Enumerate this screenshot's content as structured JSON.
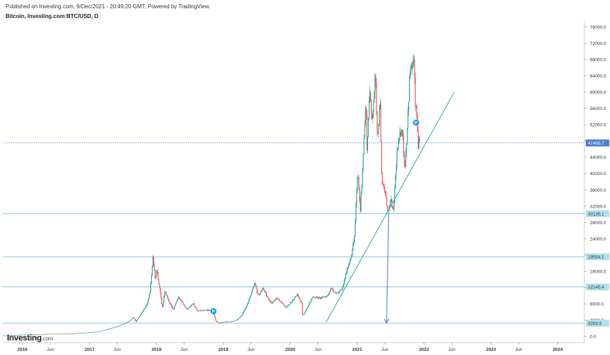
{
  "header": {
    "published": "Published on Investing.com, 9/Dec/2021 - 20:49:20 GMT, Powered by TradingView.",
    "title": "Bitcoin, Investing.com:BTC/USD, D"
  },
  "logo": {
    "brand": "Investing",
    "suffix": ".com"
  },
  "colors": {
    "up": "#26a69a",
    "down": "#ef5350",
    "hline": "#7ec8d8",
    "trendline": "#26a69a",
    "arrow": "#6b7fd7",
    "price_label_bg": "#4d7fd1",
    "level_label_bg": "#b3e0ea",
    "axis_text": "#333333",
    "marker": "#2196f3"
  },
  "chart_data": {
    "type": "candlestick",
    "title": "Bitcoin, Investing.com:BTC/USD, D",
    "ylim": [
      -1500,
      77500
    ],
    "y_ticks": [
      0,
      4000,
      8000,
      12000,
      16000,
      20000,
      24000,
      28000,
      32000,
      36000,
      40000,
      44000,
      48000,
      52000,
      56000,
      60000,
      64000,
      68000,
      72000,
      76000
    ],
    "y_tick_labels": [
      "0.0",
      "4000.0",
      "8000.0",
      "12000.0",
      "16000.0",
      "20000.0",
      "24000.0",
      "28000.0",
      "32000.0",
      "36000.0",
      "40000.0",
      "44000.0",
      "48000.0",
      "52000.0",
      "56000.0",
      "60000.0",
      "64000.0",
      "68000.0",
      "72000.0",
      "76000.0"
    ],
    "x_range": [
      "2015-09-15",
      "2024-05-25"
    ],
    "x_ticks": [
      {
        "date": "2016-01-01",
        "label": "2016"
      },
      {
        "date": "2016-06-01",
        "label": "Jun"
      },
      {
        "date": "2017-01-01",
        "label": "2017"
      },
      {
        "date": "2017-06-01",
        "label": "Jun"
      },
      {
        "date": "2018-01-01",
        "label": "2018"
      },
      {
        "date": "2018-06-01",
        "label": "Jun"
      },
      {
        "date": "2019-01-01",
        "label": "2019"
      },
      {
        "date": "2019-06-01",
        "label": "Jun"
      },
      {
        "date": "2020-01-01",
        "label": "2020"
      },
      {
        "date": "2020-06-01",
        "label": "Jun"
      },
      {
        "date": "2021-01-01",
        "label": "2021"
      },
      {
        "date": "2021-06-01",
        "label": "Jun"
      },
      {
        "date": "2022-01-01",
        "label": "2022"
      },
      {
        "date": "2022-06-01",
        "label": "Jun"
      },
      {
        "date": "2023-01-01",
        "label": "2023"
      },
      {
        "date": "2023-06-01",
        "label": "Jun"
      },
      {
        "date": "2024-01-01",
        "label": "2024"
      }
    ],
    "current_price": {
      "value": 47495.7,
      "label": "47495.7"
    },
    "horizontal_levels": [
      {
        "value": 30135.1,
        "label": "30135.1"
      },
      {
        "value": 19554.1,
        "label": "19554.1"
      },
      {
        "value": 12145.4,
        "label": "12145.4"
      },
      {
        "value": 3263.5,
        "label": "3263.5"
      }
    ],
    "trendline": {
      "start": {
        "date": "2020-07-15",
        "value": 3500
      },
      "end": {
        "date": "2022-06-15",
        "value": 60000
      }
    },
    "arrow": {
      "start": {
        "date": "2021-06-22",
        "value": 30135.1
      },
      "end": {
        "date": "2021-06-10",
        "value": 3263.5
      }
    },
    "markers": [
      {
        "date": "2018-11-08",
        "value": 6200,
        "label": "P"
      },
      {
        "date": "2021-11-18",
        "value": 52500,
        "label": "P"
      }
    ],
    "series": [
      {
        "date": "2015-09-15",
        "value": 230
      },
      {
        "date": "2016-01-01",
        "value": 430
      },
      {
        "date": "2016-06-01",
        "value": 600
      },
      {
        "date": "2016-10-01",
        "value": 650
      },
      {
        "date": "2017-01-01",
        "value": 980
      },
      {
        "date": "2017-03-01",
        "value": 1200
      },
      {
        "date": "2017-05-01",
        "value": 2000
      },
      {
        "date": "2017-06-15",
        "value": 2600
      },
      {
        "date": "2017-08-01",
        "value": 3500
      },
      {
        "date": "2017-09-01",
        "value": 4600
      },
      {
        "date": "2017-09-15",
        "value": 3600
      },
      {
        "date": "2017-10-15",
        "value": 5700
      },
      {
        "date": "2017-11-15",
        "value": 8000
      },
      {
        "date": "2017-12-01",
        "value": 11000
      },
      {
        "date": "2017-12-17",
        "value": 19200
      },
      {
        "date": "2017-12-31",
        "value": 13800
      },
      {
        "date": "2018-01-07",
        "value": 16500
      },
      {
        "date": "2018-02-06",
        "value": 7000
      },
      {
        "date": "2018-02-20",
        "value": 11200
      },
      {
        "date": "2018-03-10",
        "value": 9000
      },
      {
        "date": "2018-04-06",
        "value": 6600
      },
      {
        "date": "2018-05-05",
        "value": 9800
      },
      {
        "date": "2018-06-20",
        "value": 6500
      },
      {
        "date": "2018-07-25",
        "value": 8200
      },
      {
        "date": "2018-08-15",
        "value": 6300
      },
      {
        "date": "2018-09-15",
        "value": 6500
      },
      {
        "date": "2018-10-25",
        "value": 6400
      },
      {
        "date": "2018-11-14",
        "value": 5500
      },
      {
        "date": "2018-11-25",
        "value": 3800
      },
      {
        "date": "2018-12-15",
        "value": 3250
      },
      {
        "date": "2019-01-15",
        "value": 3600
      },
      {
        "date": "2019-02-15",
        "value": 3600
      },
      {
        "date": "2019-03-15",
        "value": 3900
      },
      {
        "date": "2019-04-15",
        "value": 5100
      },
      {
        "date": "2019-05-15",
        "value": 7800
      },
      {
        "date": "2019-06-26",
        "value": 13000
      },
      {
        "date": "2019-07-15",
        "value": 10000
      },
      {
        "date": "2019-08-10",
        "value": 11800
      },
      {
        "date": "2019-09-01",
        "value": 9700
      },
      {
        "date": "2019-09-25",
        "value": 8200
      },
      {
        "date": "2019-10-26",
        "value": 9400
      },
      {
        "date": "2019-11-15",
        "value": 8500
      },
      {
        "date": "2019-12-15",
        "value": 7100
      },
      {
        "date": "2020-01-15",
        "value": 8700
      },
      {
        "date": "2020-02-13",
        "value": 10300
      },
      {
        "date": "2020-03-08",
        "value": 8000
      },
      {
        "date": "2020-03-13",
        "value": 4900
      },
      {
        "date": "2020-04-01",
        "value": 6600
      },
      {
        "date": "2020-05-08",
        "value": 9800
      },
      {
        "date": "2020-06-15",
        "value": 9400
      },
      {
        "date": "2020-07-25",
        "value": 9900
      },
      {
        "date": "2020-08-17",
        "value": 12000
      },
      {
        "date": "2020-09-10",
        "value": 10400
      },
      {
        "date": "2020-10-15",
        "value": 11500
      },
      {
        "date": "2020-11-05",
        "value": 15500
      },
      {
        "date": "2020-12-01",
        "value": 19500
      },
      {
        "date": "2020-12-20",
        "value": 24000
      },
      {
        "date": "2021-01-08",
        "value": 40500
      },
      {
        "date": "2021-01-22",
        "value": 31000
      },
      {
        "date": "2021-02-08",
        "value": 46000
      },
      {
        "date": "2021-02-21",
        "value": 57500
      },
      {
        "date": "2021-02-28",
        "value": 45000
      },
      {
        "date": "2021-03-13",
        "value": 61200
      },
      {
        "date": "2021-03-25",
        "value": 52500
      },
      {
        "date": "2021-04-14",
        "value": 64000
      },
      {
        "date": "2021-04-25",
        "value": 49000
      },
      {
        "date": "2021-05-10",
        "value": 58000
      },
      {
        "date": "2021-05-19",
        "value": 37000
      },
      {
        "date": "2021-06-01",
        "value": 36500
      },
      {
        "date": "2021-06-22",
        "value": 30500
      },
      {
        "date": "2021-07-10",
        "value": 33500
      },
      {
        "date": "2021-07-20",
        "value": 29800
      },
      {
        "date": "2021-08-10",
        "value": 45000
      },
      {
        "date": "2021-09-06",
        "value": 52000
      },
      {
        "date": "2021-09-21",
        "value": 41000
      },
      {
        "date": "2021-10-01",
        "value": 48000
      },
      {
        "date": "2021-10-20",
        "value": 65000
      },
      {
        "date": "2021-11-10",
        "value": 67500
      },
      {
        "date": "2021-11-18",
        "value": 57000
      },
      {
        "date": "2021-11-26",
        "value": 54000
      },
      {
        "date": "2021-12-04",
        "value": 47000
      },
      {
        "date": "2021-12-09",
        "value": 47495.7
      }
    ]
  }
}
